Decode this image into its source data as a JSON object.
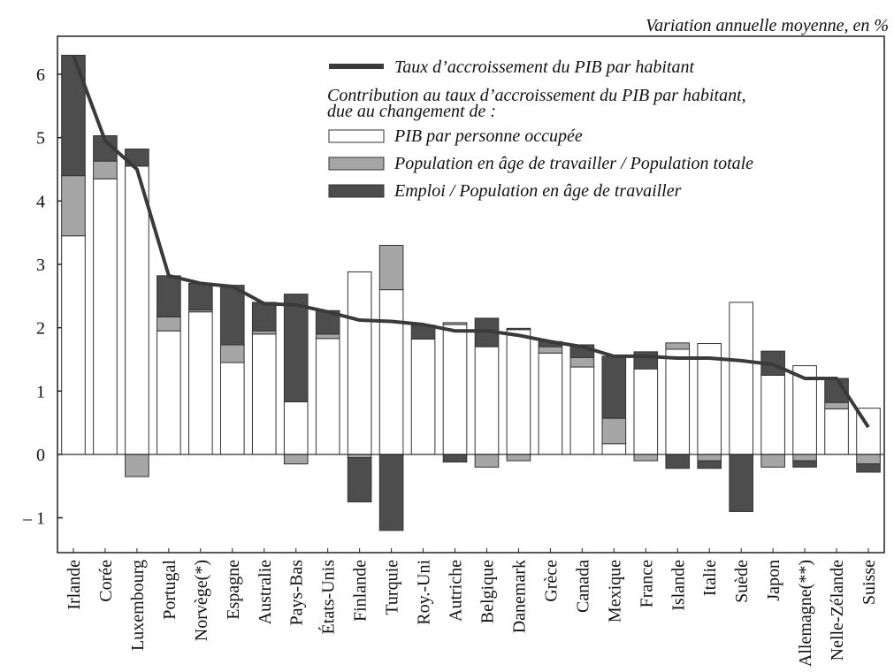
{
  "chart_data": {
    "type": "bar",
    "stacked": true,
    "y_axis_label": "Variation annuelle moyenne, en %",
    "categories": [
      "Irlande",
      "Corée",
      "Luxembourg",
      "Portugal",
      "Norvège(*)",
      "Espagne",
      "Australie",
      "Pays-Bas",
      "États-Unis",
      "Finlande",
      "Turquie",
      "Roy.-Uni",
      "Autriche",
      "Belgique",
      "Danemark",
      "Grèce",
      "Canada",
      "Mexique",
      "France",
      "Islande",
      "Italie",
      "Suède",
      "Japon",
      "Allemagne(**)",
      "Nelle-Zélande",
      "Suisse"
    ],
    "legend_note": [
      "Contribution au taux d’accroissement du PIB par habitant,",
      "due au changement de :"
    ],
    "line": {
      "name": "Taux d’accroissement du PIB par habitant",
      "color": "#3a3a3a",
      "values": [
        6.3,
        4.95,
        4.5,
        2.82,
        2.7,
        2.65,
        2.38,
        2.36,
        2.25,
        2.12,
        2.1,
        2.05,
        1.95,
        1.95,
        1.88,
        1.78,
        1.7,
        1.55,
        1.55,
        1.52,
        1.52,
        1.48,
        1.42,
        1.2,
        1.2,
        0.43
      ]
    },
    "series": [
      {
        "name": "PIB par personne occupée",
        "color": "#ffffff",
        "values": [
          3.45,
          4.35,
          4.55,
          1.95,
          2.25,
          1.45,
          1.9,
          0.83,
          1.83,
          2.88,
          2.6,
          1.82,
          2.05,
          1.7,
          1.97,
          1.6,
          1.38,
          0.17,
          1.35,
          1.66,
          1.75,
          2.4,
          1.25,
          1.4,
          0.72,
          0.73
        ]
      },
      {
        "name": "Population en âge de travailler / Population totale",
        "color": "#a6a6a6",
        "values": [
          0.95,
          0.28,
          -0.35,
          0.22,
          0.03,
          0.28,
          0.05,
          -0.15,
          0.07,
          -0.05,
          0.7,
          0,
          0.03,
          -0.2,
          -0.1,
          0.1,
          0.15,
          0.4,
          -0.1,
          0.1,
          -0.1,
          0,
          -0.2,
          -0.1,
          0.1,
          -0.15
        ]
      },
      {
        "name": "Emploi / Population en âge de travailler",
        "color": "#4d4d4d",
        "values": [
          1.9,
          0.4,
          0.27,
          0.65,
          0.42,
          0.94,
          0.45,
          1.7,
          0.37,
          -0.7,
          -1.2,
          0.22,
          -0.12,
          0.45,
          0.02,
          0.08,
          0.2,
          0.98,
          0.27,
          -0.22,
          -0.12,
          -0.9,
          0.38,
          -0.1,
          0.38,
          -0.13
        ]
      }
    ],
    "ylim": [
      -1.55,
      6.6
    ],
    "yticks": [
      {
        "value": -1,
        "label": "– 1"
      },
      0,
      1,
      2,
      3,
      4,
      5,
      6
    ]
  }
}
